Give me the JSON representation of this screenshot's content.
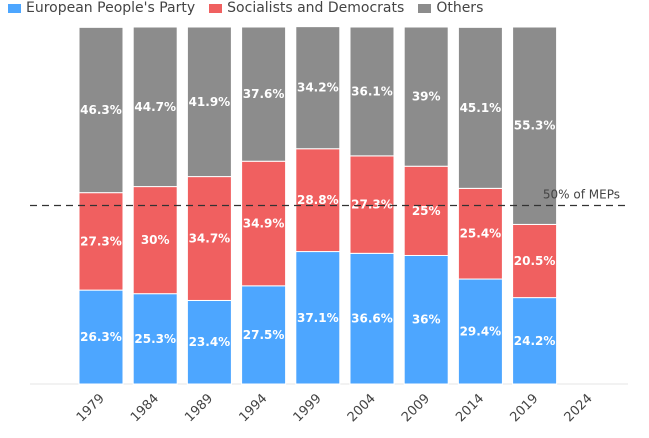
{
  "chart_data": {
    "type": "bar",
    "stacked": true,
    "percent": true,
    "categories": [
      "1979",
      "1984",
      "1989",
      "1994",
      "1999",
      "2004",
      "2009",
      "2014",
      "2019",
      "2024"
    ],
    "series": [
      {
        "name": "European People's Party",
        "color": "#4da6ff",
        "values": [
          26.3,
          25.3,
          23.4,
          27.5,
          37.1,
          36.6,
          36,
          29.4,
          24.2,
          null
        ],
        "labels": [
          "26.3%",
          "25.3%",
          "23.4%",
          "27.5%",
          "37.1%",
          "36.6%",
          "36%",
          "29.4%",
          "24.2%",
          ""
        ]
      },
      {
        "name": "Socialists and Democrats",
        "color": "#f06060",
        "values": [
          27.3,
          30,
          34.7,
          34.9,
          28.8,
          27.3,
          25,
          25.4,
          20.5,
          null
        ],
        "labels": [
          "27.3%",
          "30%",
          "34.7%",
          "34.9%",
          "28.8%",
          "27.3%",
          "25%",
          "25.4%",
          "20.5%",
          ""
        ]
      },
      {
        "name": "Others",
        "color": "#8c8c8c",
        "values": [
          46.3,
          44.7,
          41.9,
          37.6,
          34.2,
          36.1,
          39,
          45.1,
          55.3,
          null
        ],
        "labels": [
          "46.3%",
          "44.7%",
          "41.9%",
          "37.6%",
          "34.2%",
          "36.1%",
          "39%",
          "45.1%",
          "55.3%",
          ""
        ]
      }
    ],
    "ylim": [
      0,
      100
    ],
    "reference_line": {
      "value": 50,
      "label": "50% of MEPs",
      "style": "dashed"
    },
    "legend_position": "top-left",
    "grid": false
  }
}
